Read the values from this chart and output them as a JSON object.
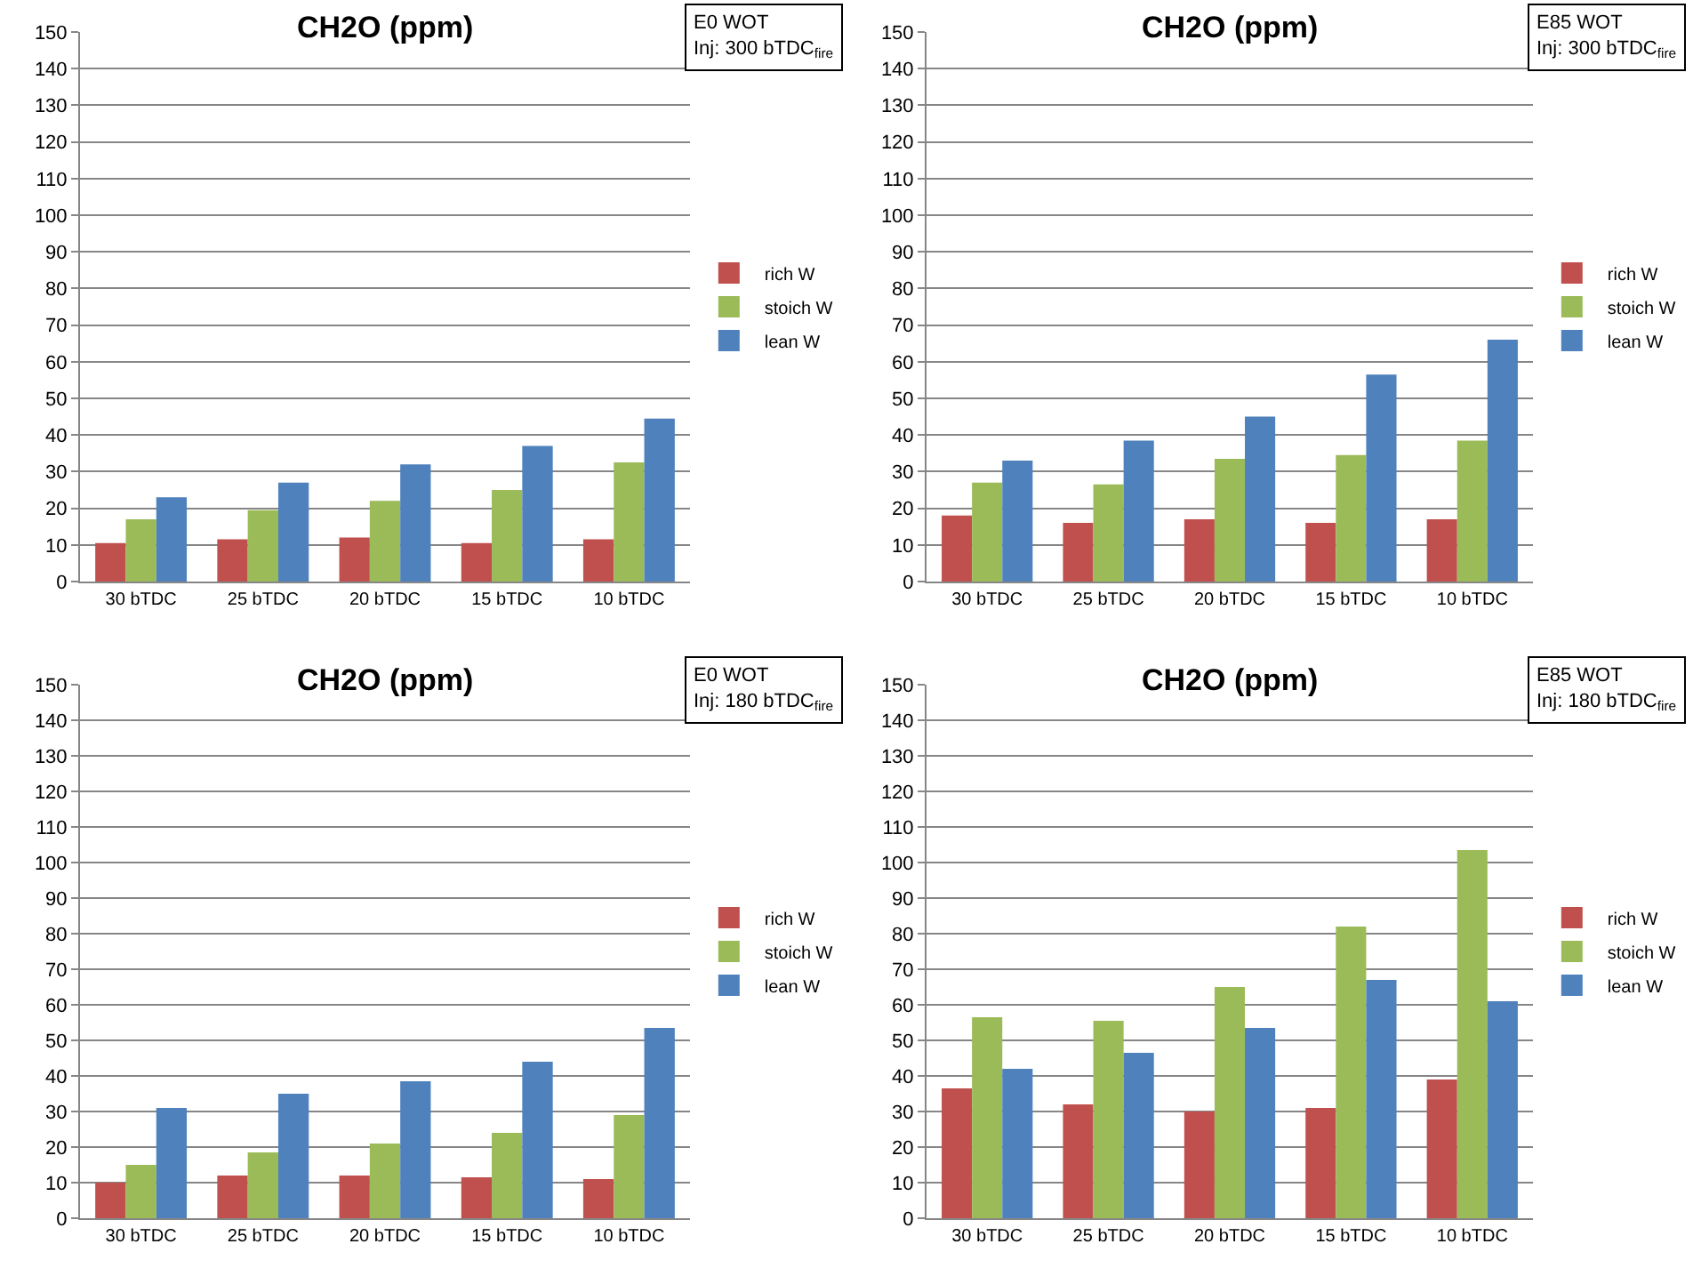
{
  "chart_data": [
    {
      "type": "bar",
      "title": "CH2O (ppm)",
      "annotations": [
        "E0 WOT\nInj: 300 bTDC$_{fire}$"
      ],
      "categories": [
        "30 bTDC",
        "25 bTDC",
        "20 bTDC",
        "15 bTDC",
        "10 bTDC"
      ],
      "ylim": [
        0,
        150
      ],
      "yticks": [
        0,
        10,
        20,
        30,
        40,
        50,
        60,
        70,
        80,
        90,
        100,
        110,
        120,
        130,
        140,
        150
      ],
      "grid": "y",
      "legend": "right",
      "series": [
        {
          "name": "rich W",
          "color": "#c0504d",
          "values": [
            10.5,
            11.5,
            12,
            10.5,
            11.5
          ]
        },
        {
          "name": "stoich W",
          "color": "#9bbb59",
          "values": [
            17,
            19.5,
            22,
            25,
            32.5
          ]
        },
        {
          "name": "lean W",
          "color": "#4f81bd",
          "values": [
            23,
            27,
            32,
            37,
            44.5
          ]
        }
      ]
    },
    {
      "type": "bar",
      "title": "CH2O (ppm)",
      "annotations": [
        "E85 WOT\nInj: 300 bTDC$_{fire}$"
      ],
      "categories": [
        "30 bTDC",
        "25 bTDC",
        "20 bTDC",
        "15 bTDC",
        "10 bTDC"
      ],
      "ylim": [
        0,
        150
      ],
      "yticks": [
        0,
        10,
        20,
        30,
        40,
        50,
        60,
        70,
        80,
        90,
        100,
        110,
        120,
        130,
        140,
        150
      ],
      "grid": "y",
      "legend": "right",
      "series": [
        {
          "name": "rich W",
          "color": "#c0504d",
          "values": [
            18,
            16,
            17,
            16,
            17
          ]
        },
        {
          "name": "stoich W",
          "color": "#9bbb59",
          "values": [
            27,
            26.5,
            33.5,
            34.5,
            38.5
          ]
        },
        {
          "name": "lean W",
          "color": "#4f81bd",
          "values": [
            33,
            38.5,
            45,
            56.5,
            66
          ]
        }
      ]
    },
    {
      "type": "bar",
      "title": "CH2O (ppm)",
      "annotations": [
        "E0 WOT\nInj: 180 bTDC$_{fire}$"
      ],
      "categories": [
        "30 bTDC",
        "25 bTDC",
        "20 bTDC",
        "15 bTDC",
        "10 bTDC"
      ],
      "ylim": [
        0,
        150
      ],
      "yticks": [
        0,
        10,
        20,
        30,
        40,
        50,
        60,
        70,
        80,
        90,
        100,
        110,
        120,
        130,
        140,
        150
      ],
      "grid": "y",
      "legend": "right",
      "series": [
        {
          "name": "rich W",
          "color": "#c0504d",
          "values": [
            10,
            12,
            12,
            11.5,
            11
          ]
        },
        {
          "name": "stoich W",
          "color": "#9bbb59",
          "values": [
            15,
            18.5,
            21,
            24,
            29
          ]
        },
        {
          "name": "lean W",
          "color": "#4f81bd",
          "values": [
            31,
            35,
            38.5,
            44,
            53.5
          ]
        }
      ]
    },
    {
      "type": "bar",
      "title": "CH2O (ppm)",
      "annotations": [
        "E85 WOT\nInj: 180 bTDC$_{fire}$"
      ],
      "categories": [
        "30 bTDC",
        "25 bTDC",
        "20 bTDC",
        "15 bTDC",
        "10 bTDC"
      ],
      "ylim": [
        0,
        150
      ],
      "yticks": [
        0,
        10,
        20,
        30,
        40,
        50,
        60,
        70,
        80,
        90,
        100,
        110,
        120,
        130,
        140,
        150
      ],
      "grid": "y",
      "legend": "right",
      "series": [
        {
          "name": "rich W",
          "color": "#c0504d",
          "values": [
            36.5,
            32,
            30,
            31,
            39
          ]
        },
        {
          "name": "stoich W",
          "color": "#9bbb59",
          "values": [
            56.5,
            55.5,
            65,
            82,
            103.5
          ]
        },
        {
          "name": "lean W",
          "color": "#4f81bd",
          "values": [
            42,
            46.5,
            53.5,
            67,
            61
          ]
        }
      ]
    }
  ]
}
